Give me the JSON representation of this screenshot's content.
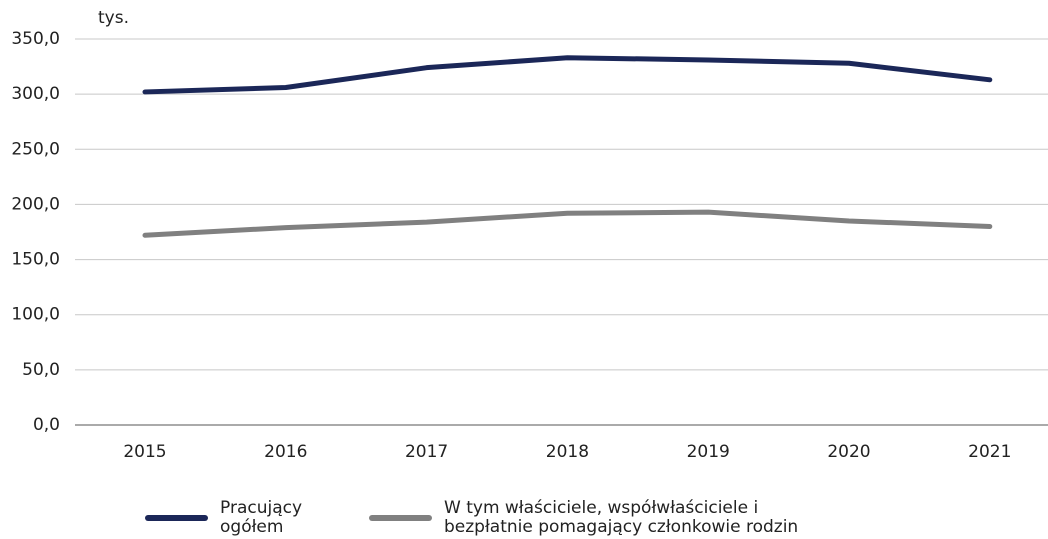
{
  "chart_data": {
    "type": "line",
    "unit_label": "tys.",
    "categories": [
      "2015",
      "2016",
      "2017",
      "2018",
      "2019",
      "2020",
      "2021"
    ],
    "series": [
      {
        "name": "Pracujący ogółem",
        "color": "#1b2758",
        "values": [
          302,
          306,
          324,
          333,
          331,
          328,
          313
        ]
      },
      {
        "name": "W tym właściciele, współwłaściciele i bezpłatnie pomagający członkowie rodzin",
        "color": "#808080",
        "values": [
          172,
          179,
          184,
          192,
          193,
          185,
          180
        ]
      }
    ],
    "ylim": [
      0,
      350
    ],
    "yticks": [
      {
        "value": 0,
        "label": "0,0"
      },
      {
        "value": 50,
        "label": "50,0"
      },
      {
        "value": 100,
        "label": "100,0"
      },
      {
        "value": 150,
        "label": "150,0"
      },
      {
        "value": 200,
        "label": "200,0"
      },
      {
        "value": 250,
        "label": "250,0"
      },
      {
        "value": 300,
        "label": "300,0"
      },
      {
        "value": 350,
        "label": "350,0"
      }
    ],
    "grid": true
  }
}
